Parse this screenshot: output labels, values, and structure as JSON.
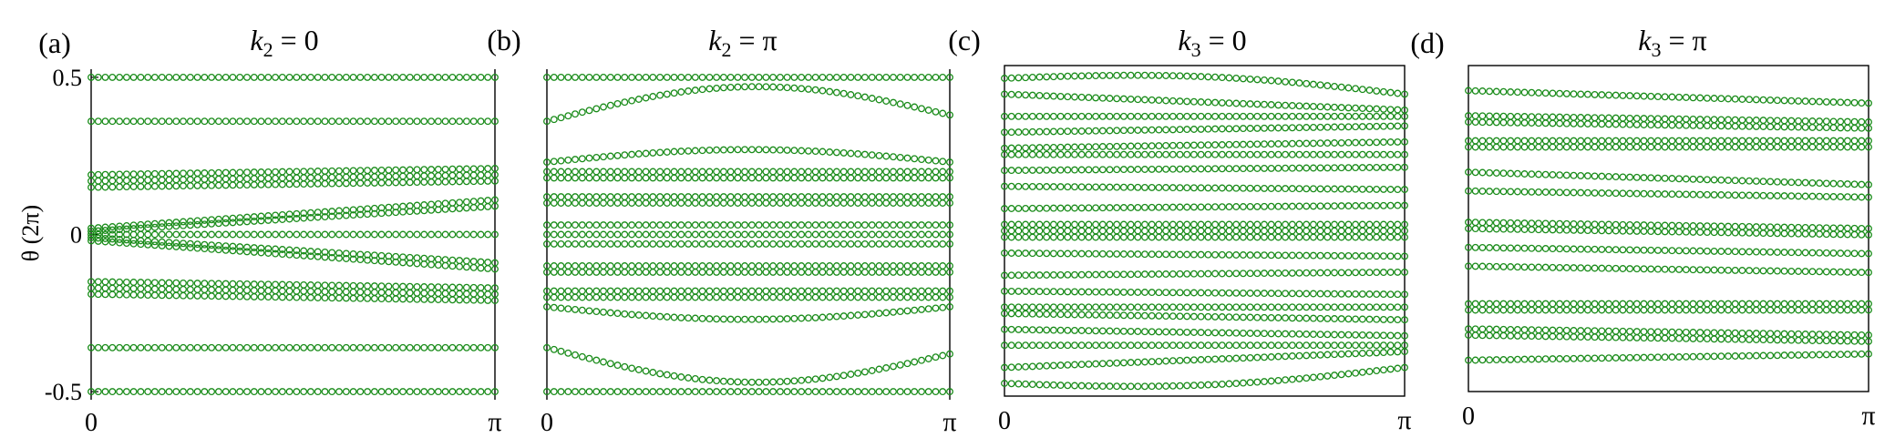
{
  "figure": {
    "ylabel": "θ (2π)"
  },
  "chart_data": [
    {
      "type": "scatter",
      "panel_label": "(a)",
      "title_var": "k",
      "title_sub": "2",
      "title_rest": " = 0",
      "xlim": [
        0,
        3.14159
      ],
      "ylim": [
        -0.52,
        0.52
      ],
      "x_tick_labels": [
        "0",
        "π"
      ],
      "y_tick_labels": [
        "0.5",
        "0",
        "-0.5"
      ],
      "y_ticks": [
        0.5,
        0,
        -0.5
      ],
      "marker": "open-circle",
      "color": "#1a8c1a",
      "bands": [
        {
          "left": 0.5,
          "right": 0.5
        },
        {
          "left": 0.36,
          "right": 0.36
        },
        {
          "left": 0.19,
          "right": 0.21
        },
        {
          "left": 0.17,
          "right": 0.19
        },
        {
          "left": 0.15,
          "right": 0.17
        },
        {
          "left": 0.02,
          "right": 0.11
        },
        {
          "left": 0.01,
          "right": 0.09
        },
        {
          "left": 0.0,
          "right": 0.0
        },
        {
          "left": -0.01,
          "right": -0.09
        },
        {
          "left": -0.02,
          "right": -0.11
        },
        {
          "left": -0.15,
          "right": -0.17
        },
        {
          "left": -0.17,
          "right": -0.19
        },
        {
          "left": -0.19,
          "right": -0.21
        },
        {
          "left": -0.36,
          "right": -0.36
        },
        {
          "left": -0.5,
          "right": -0.5
        }
      ]
    },
    {
      "type": "scatter",
      "panel_label": "(b)",
      "title_var": "k",
      "title_sub": "2",
      "title_rest": " = π",
      "xlim": [
        0,
        3.14159
      ],
      "ylim": [
        -0.52,
        0.52
      ],
      "x_tick_labels": [
        "0",
        "π"
      ],
      "y_tick_labels": [],
      "y_ticks": [],
      "marker": "open-circle",
      "color": "#1a8c1a",
      "bands": [
        {
          "left": 0.5,
          "right": 0.5
        },
        {
          "left": 0.36,
          "right": 0.38,
          "bulge": 0.1
        },
        {
          "left": 0.23,
          "right": 0.23,
          "bulge": 0.04
        },
        {
          "left": 0.2,
          "right": 0.2
        },
        {
          "left": 0.18,
          "right": 0.18
        },
        {
          "left": 0.12,
          "right": 0.12
        },
        {
          "left": 0.1,
          "right": 0.1
        },
        {
          "left": 0.03,
          "right": 0.03
        },
        {
          "left": 0.0,
          "right": 0.0
        },
        {
          "left": -0.03,
          "right": -0.03
        },
        {
          "left": -0.1,
          "right": -0.1
        },
        {
          "left": -0.12,
          "right": -0.12
        },
        {
          "left": -0.18,
          "right": -0.18
        },
        {
          "left": -0.2,
          "right": -0.2
        },
        {
          "left": -0.23,
          "right": -0.23,
          "bulge": -0.04
        },
        {
          "left": -0.36,
          "right": -0.38,
          "bulge": -0.1
        },
        {
          "left": -0.5,
          "right": -0.5
        }
      ]
    },
    {
      "type": "scatter",
      "panel_label": "(c)",
      "title_var": "k",
      "title_sub": "3",
      "title_rest": " = 0",
      "xlim": [
        0,
        3.14159
      ],
      "ylim": [
        -0.52,
        0.52
      ],
      "x_tick_labels": [
        "0",
        "π"
      ],
      "y_tick_labels": [],
      "y_ticks": [],
      "marker": "open-circle",
      "color": "#1a8c1a",
      "bands": [
        {
          "left": 0.48,
          "right": 0.43,
          "bulge": 0.03
        },
        {
          "left": 0.43,
          "right": 0.38
        },
        {
          "left": 0.36,
          "right": 0.36
        },
        {
          "left": 0.31,
          "right": 0.33
        },
        {
          "left": 0.26,
          "right": 0.28
        },
        {
          "left": 0.24,
          "right": 0.24
        },
        {
          "left": 0.19,
          "right": 0.2
        },
        {
          "left": 0.14,
          "right": 0.13
        },
        {
          "left": 0.07,
          "right": 0.08
        },
        {
          "left": 0.02,
          "right": 0.02
        },
        {
          "left": 0.0,
          "right": 0.0
        },
        {
          "left": -0.02,
          "right": -0.02
        },
        {
          "left": -0.07,
          "right": -0.08
        },
        {
          "left": -0.14,
          "right": -0.13
        },
        {
          "left": -0.19,
          "right": -0.2
        },
        {
          "left": -0.24,
          "right": -0.24
        },
        {
          "left": -0.26,
          "right": -0.28
        },
        {
          "left": -0.31,
          "right": -0.33
        },
        {
          "left": -0.36,
          "right": -0.36
        },
        {
          "left": -0.43,
          "right": -0.38
        },
        {
          "left": -0.48,
          "right": -0.43,
          "bulge": -0.03
        }
      ]
    },
    {
      "type": "scatter",
      "panel_label": "(d)",
      "title_var": "k",
      "title_sub": "3",
      "title_rest": " = π",
      "xlim": [
        0,
        3.14159
      ],
      "ylim": [
        -0.52,
        0.52
      ],
      "x_tick_labels": [
        "0",
        "π"
      ],
      "y_tick_labels": [],
      "y_ticks": [],
      "marker": "open-circle",
      "color": "#1a8c1a",
      "bands": [
        {
          "left": 0.44,
          "right": 0.4
        },
        {
          "left": 0.36,
          "right": 0.34
        },
        {
          "left": 0.34,
          "right": 0.32
        },
        {
          "left": 0.28,
          "right": 0.28
        },
        {
          "left": 0.26,
          "right": 0.26
        },
        {
          "left": 0.18,
          "right": 0.14
        },
        {
          "left": 0.12,
          "right": 0.1
        },
        {
          "left": 0.02,
          "right": 0.0
        },
        {
          "left": 0.0,
          "right": -0.02
        },
        {
          "left": -0.06,
          "right": -0.08
        },
        {
          "left": -0.12,
          "right": -0.14
        },
        {
          "left": -0.24,
          "right": -0.24
        },
        {
          "left": -0.26,
          "right": -0.26
        },
        {
          "left": -0.32,
          "right": -0.34
        },
        {
          "left": -0.34,
          "right": -0.36
        },
        {
          "left": -0.42,
          "right": -0.4
        }
      ]
    }
  ]
}
